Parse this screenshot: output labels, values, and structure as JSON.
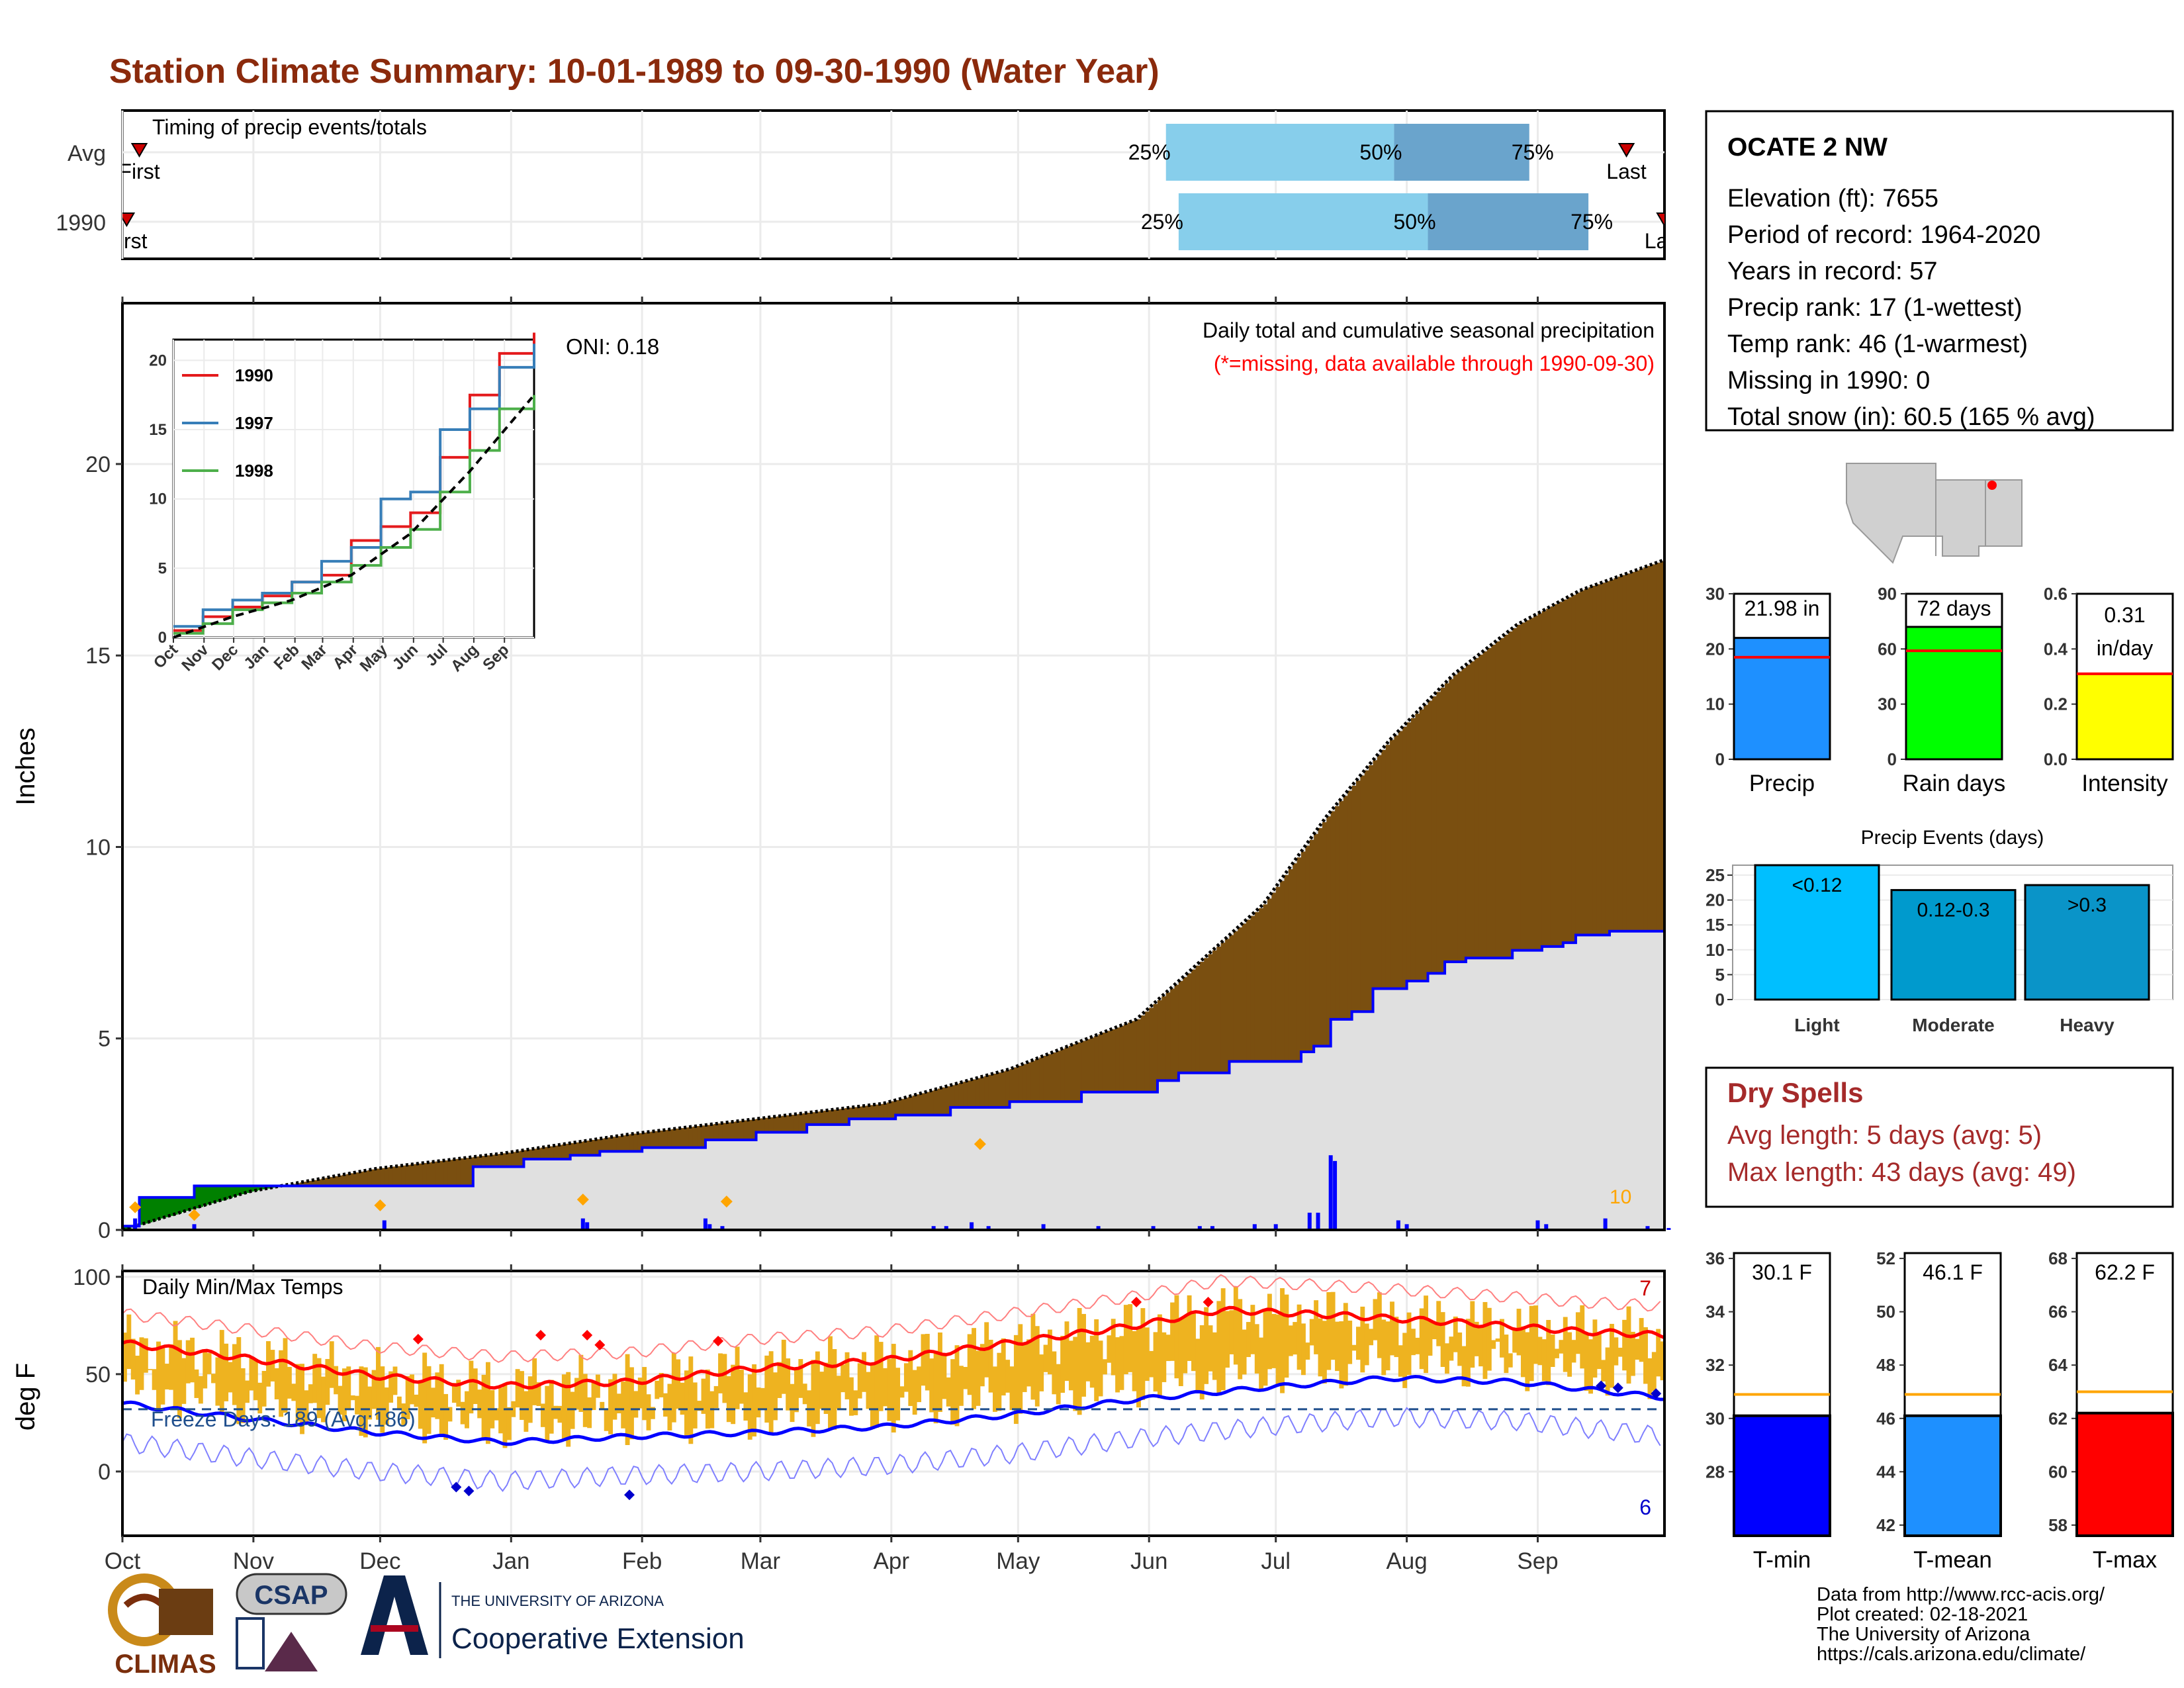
{
  "header": {
    "title": "Station Climate Summary: 10-01-1989 to 09-30-1990 (Water Year)"
  },
  "colors": {
    "title": "#8b2a0c",
    "light_blue": "#87ceeb",
    "mid_blue": "#6aa4cc",
    "green": "#008000",
    "brown": "#7a4f10",
    "gray_fill": "#e0e0e0",
    "blue": "#0000ff",
    "orange": "#ffa500",
    "red": "#ff0000",
    "gold": "#eeb320",
    "dry_red": "#a52a2a"
  },
  "months": [
    "Oct",
    "Nov",
    "Dec",
    "Jan",
    "Feb",
    "Mar",
    "Apr",
    "May",
    "Jun",
    "Jul",
    "Aug",
    "Sep"
  ],
  "timing": {
    "title": "Timing of precip events/totals",
    "rows": [
      {
        "label": "Avg",
        "first_label": "First",
        "last_label": "Last",
        "first_day": 4,
        "last_day": 356,
        "p25": 247,
        "p50": 301,
        "p75": 333
      },
      {
        "label": "1990",
        "first_label": "First",
        "last_label": "Last",
        "first_day": 1,
        "last_day": 365,
        "p25": 250,
        "p50": 309,
        "p75": 347
      }
    ],
    "pct_labels": [
      "25%",
      "50%",
      "75%"
    ]
  },
  "precip": {
    "title": "Daily total and cumulative seasonal precipitation",
    "subtitle": "(*=missing, data available through 1990-09-30)",
    "oni": "ONI: 0.18",
    "ylabel": "Inches",
    "yticks": [
      0,
      5,
      10,
      15,
      20
    ],
    "ylim": [
      0,
      24.2
    ],
    "count_label": "10",
    "cumulative_1990": [
      [
        0,
        0.1
      ],
      [
        4,
        0.85
      ],
      [
        17,
        1.15
      ],
      [
        83,
        1.65
      ],
      [
        95,
        1.85
      ],
      [
        106,
        1.95
      ],
      [
        113,
        2.05
      ],
      [
        123,
        2.15
      ],
      [
        138,
        2.35
      ],
      [
        150,
        2.55
      ],
      [
        162,
        2.75
      ],
      [
        172,
        2.9
      ],
      [
        183,
        3.0
      ],
      [
        196,
        3.2
      ],
      [
        210,
        3.35
      ],
      [
        227,
        3.6
      ],
      [
        245,
        3.9
      ],
      [
        250,
        4.1
      ],
      [
        262,
        4.4
      ],
      [
        279,
        4.65
      ],
      [
        282,
        4.8
      ],
      [
        286,
        5.5
      ],
      [
        291,
        5.7
      ],
      [
        296,
        6.3
      ],
      [
        304,
        6.5
      ],
      [
        309,
        6.7
      ],
      [
        313,
        7.0
      ],
      [
        318,
        7.1
      ],
      [
        329,
        7.3
      ],
      [
        336,
        7.4
      ],
      [
        341,
        7.5
      ],
      [
        344,
        7.7
      ],
      [
        352,
        7.8
      ],
      [
        365,
        7.9
      ]
    ],
    "cumulative_avg": [
      [
        0,
        0
      ],
      [
        30,
        1.0
      ],
      [
        60,
        1.6
      ],
      [
        90,
        2.0
      ],
      [
        120,
        2.5
      ],
      [
        150,
        2.9
      ],
      [
        180,
        3.3
      ],
      [
        210,
        4.2
      ],
      [
        240,
        5.5
      ],
      [
        270,
        8.5
      ],
      [
        285,
        10.8
      ],
      [
        300,
        12.8
      ],
      [
        315,
        14.5
      ],
      [
        330,
        15.8
      ],
      [
        345,
        16.7
      ],
      [
        365,
        17.5
      ]
    ],
    "daily_1990": [
      [
        3,
        0.3
      ],
      [
        17,
        0.15
      ],
      [
        62,
        0.25
      ],
      [
        109,
        0.3
      ],
      [
        110,
        0.2
      ],
      [
        139,
        0.15
      ],
      [
        138,
        0.3
      ],
      [
        142,
        0.1
      ],
      [
        192,
        0.1
      ],
      [
        195,
        0.1
      ],
      [
        201,
        0.2
      ],
      [
        205,
        0.1
      ],
      [
        218,
        0.15
      ],
      [
        231,
        0.1
      ],
      [
        244,
        0.1
      ],
      [
        255,
        0.1
      ],
      [
        258,
        0.1
      ],
      [
        268,
        0.15
      ],
      [
        273,
        0.15
      ],
      [
        281,
        0.45
      ],
      [
        283,
        0.45
      ],
      [
        286,
        1.95
      ],
      [
        287,
        1.8
      ],
      [
        302,
        0.25
      ],
      [
        304,
        0.15
      ],
      [
        335,
        0.25
      ],
      [
        337,
        0.15
      ],
      [
        351,
        0.3
      ],
      [
        361,
        0.1
      ],
      [
        366,
        0.05
      ]
    ],
    "extreme_markers": [
      [
        3,
        0.35
      ],
      [
        17,
        0.15
      ],
      [
        61,
        0.4
      ],
      [
        109,
        0.55
      ],
      [
        143,
        0.5
      ],
      [
        203,
        2.0
      ]
    ]
  },
  "inset": {
    "legend": [
      {
        "name": "1990",
        "color": "#e41a1c"
      },
      {
        "name": "1997",
        "color": "#377eb8"
      },
      {
        "name": "1998",
        "color": "#4daf4a"
      }
    ],
    "yticks": [
      0,
      5,
      10,
      15,
      20
    ],
    "ylim": [
      0,
      21.5
    ],
    "series": {
      "1990": [
        [
          0,
          0.5
        ],
        [
          30,
          1.5
        ],
        [
          60,
          2.2
        ],
        [
          90,
          3.0
        ],
        [
          120,
          4.0
        ],
        [
          150,
          4.5
        ],
        [
          180,
          7.0
        ],
        [
          210,
          8.0
        ],
        [
          240,
          9.0
        ],
        [
          270,
          13.0
        ],
        [
          300,
          17.5
        ],
        [
          330,
          20.5
        ],
        [
          365,
          22.0
        ]
      ],
      "1997": [
        [
          0,
          0.8
        ],
        [
          30,
          2.0
        ],
        [
          60,
          2.7
        ],
        [
          90,
          3.2
        ],
        [
          120,
          4.0
        ],
        [
          150,
          5.5
        ],
        [
          180,
          6.5
        ],
        [
          210,
          10.0
        ],
        [
          240,
          10.5
        ],
        [
          270,
          15.0
        ],
        [
          300,
          16.5
        ],
        [
          330,
          19.5
        ],
        [
          365,
          21.2
        ]
      ],
      "1998": [
        [
          0,
          0.3
        ],
        [
          30,
          1.0
        ],
        [
          60,
          2.0
        ],
        [
          90,
          2.5
        ],
        [
          120,
          3.2
        ],
        [
          150,
          4.0
        ],
        [
          180,
          5.2
        ],
        [
          210,
          6.5
        ],
        [
          240,
          7.8
        ],
        [
          270,
          10.5
        ],
        [
          300,
          13.5
        ],
        [
          330,
          16.5
        ],
        [
          365,
          17.5
        ]
      ],
      "avg": [
        [
          0,
          0
        ],
        [
          60,
          1.5
        ],
        [
          120,
          2.7
        ],
        [
          180,
          4.5
        ],
        [
          240,
          7.5
        ],
        [
          300,
          12.0
        ],
        [
          365,
          17.5
        ]
      ]
    }
  },
  "temps": {
    "title": "Daily Min/Max Temps",
    "ylabel": "deg F",
    "yticks": [
      0,
      50,
      100
    ],
    "ylim": [
      -33,
      103
    ],
    "freeze_line": 32,
    "freeze_label": "Freeze Days: 189 (Avg:186)",
    "max_count_label": "7",
    "min_count_label": "6",
    "avg_max": [
      [
        0,
        66
      ],
      [
        30,
        58
      ],
      [
        60,
        49
      ],
      [
        90,
        44
      ],
      [
        120,
        46
      ],
      [
        150,
        53
      ],
      [
        180,
        57
      ],
      [
        210,
        66
      ],
      [
        240,
        75
      ],
      [
        260,
        83
      ],
      [
        290,
        80
      ],
      [
        320,
        76
      ],
      [
        345,
        72
      ],
      [
        365,
        70
      ]
    ],
    "avg_min": [
      [
        0,
        35
      ],
      [
        30,
        27
      ],
      [
        60,
        20
      ],
      [
        90,
        15
      ],
      [
        120,
        18
      ],
      [
        150,
        20
      ],
      [
        180,
        23
      ],
      [
        210,
        29
      ],
      [
        240,
        37
      ],
      [
        270,
        43
      ],
      [
        300,
        48
      ],
      [
        330,
        46
      ],
      [
        365,
        38
      ]
    ],
    "record_hi_markers": [
      [
        110,
        70
      ],
      [
        113,
        65
      ],
      [
        141,
        67
      ],
      [
        240,
        87
      ],
      [
        257,
        87
      ],
      [
        99,
        70
      ],
      [
        70,
        68
      ]
    ],
    "record_lo_markers": [
      [
        82,
        -10
      ],
      [
        79,
        -8
      ],
      [
        120,
        -12
      ],
      [
        350,
        44
      ],
      [
        354,
        43
      ],
      [
        363,
        40
      ]
    ]
  },
  "station": {
    "name": "OCATE 2 NW",
    "lines": [
      "Elevation (ft): 7655",
      "Period of record: 1964-2020",
      "Years in record: 57",
      "Precip rank: 17 (1-wettest)",
      "Temp rank: 46 (1-warmest)",
      "Missing in 1990: 0",
      "Total snow (in): 60.5 (165 % avg)"
    ]
  },
  "stat_bars": [
    {
      "label": "Precip",
      "value_text": "21.98 in",
      "value": 22.0,
      "avg": 18.5,
      "yticks": [
        "0",
        "10",
        "20",
        "30"
      ],
      "ymax": 30,
      "color": "#1e90ff"
    },
    {
      "label": "Rain days",
      "value_text": "72 days",
      "value": 72,
      "avg": 59,
      "yticks": [
        "0",
        "30",
        "60",
        "90"
      ],
      "ymax": 90,
      "color": "#00ff00"
    },
    {
      "label": "Intensity",
      "value_text": "0.31 in/day",
      "value": 0.31,
      "avg": 0.31,
      "yticks": [
        "0.0",
        "0.2",
        "0.4",
        "0.6"
      ],
      "ymax": 0.6,
      "color": "#ffff00"
    }
  ],
  "events": {
    "title": "Precip Events (days)",
    "yticks": [
      "0",
      "5",
      "10",
      "15",
      "20",
      "25"
    ],
    "ymax": 27,
    "bars": [
      {
        "name": "Light",
        "label": "<0.12",
        "value": 27,
        "color": "#00bfff"
      },
      {
        "name": "Moderate",
        "label": "0.12-0.3",
        "value": 22,
        "color": "#009acd"
      },
      {
        "name": "Heavy",
        "label": ">0.3",
        "value": 23,
        "color": "#0a94c8"
      }
    ]
  },
  "dry": {
    "title": "Dry Spells",
    "line1": "Avg length: 5 days (avg: 5)",
    "line2": "Max length: 43 days (avg: 49)"
  },
  "temp_bars": [
    {
      "label": "T-min",
      "value_text": "30.1 F",
      "value": 30.1,
      "avg": 30.9,
      "yticks": [
        "28",
        "30",
        "32",
        "34",
        "36"
      ],
      "ymin": 25.6,
      "ymax": 36.2,
      "color": "#0000ff"
    },
    {
      "label": "T-mean",
      "value_text": "46.1 F",
      "value": 46.1,
      "avg": 46.9,
      "yticks": [
        "42",
        "44",
        "46",
        "48",
        "50",
        "52"
      ],
      "ymin": 41.6,
      "ymax": 52.2,
      "color": "#1e90ff"
    },
    {
      "label": "T-max",
      "value_text": "62.2 F",
      "value": 62.2,
      "avg": 63.0,
      "yticks": [
        "58",
        "60",
        "62",
        "64",
        "66",
        "68"
      ],
      "ymin": 57.6,
      "ymax": 68.2,
      "color": "#ff0000"
    }
  ],
  "footer": {
    "lines": [
      "Data from http://www.rcc-acis.org/",
      "Plot created: 02-18-2021",
      "The University of Arizona",
      "https://cals.arizona.edu/climate/"
    ],
    "logos": {
      "climas": "CLIMAS",
      "csap": "CSAP",
      "ua_small": "THE UNIVERSITY OF ARIZONA",
      "ua_big": "Cooperative Extension"
    }
  }
}
